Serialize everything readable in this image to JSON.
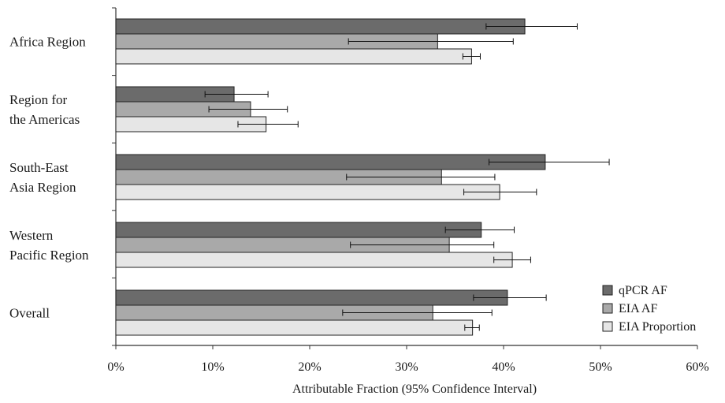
{
  "chart_data": {
    "type": "bar",
    "orientation": "horizontal",
    "categories": [
      [
        "Africa Region"
      ],
      [
        "Region for",
        "the Americas"
      ],
      [
        "South-East",
        "Asia Region"
      ],
      [
        "Western",
        "Pacific Region"
      ],
      [
        "Overall"
      ]
    ],
    "series": [
      {
        "name": "qPCR AF",
        "color": "#6b6b6b",
        "values": [
          42.2,
          12.2,
          44.3,
          37.7,
          40.4
        ],
        "ci_low": [
          38.2,
          9.2,
          38.5,
          34.0,
          36.9
        ],
        "ci_high": [
          47.6,
          15.7,
          50.9,
          41.1,
          44.4
        ]
      },
      {
        "name": "EIA AF",
        "color": "#a9a9a9",
        "values": [
          33.2,
          13.9,
          33.6,
          34.4,
          32.7
        ],
        "ci_low": [
          24.0,
          9.6,
          23.8,
          24.2,
          23.4
        ],
        "ci_high": [
          41.0,
          17.7,
          39.1,
          39.0,
          38.8
        ]
      },
      {
        "name": "EIA Proportion",
        "color": "#e6e6e6",
        "values": [
          36.7,
          15.5,
          39.6,
          40.9,
          36.8
        ],
        "ci_low": [
          35.8,
          12.6,
          35.9,
          39.0,
          36.0
        ],
        "ci_high": [
          37.6,
          18.8,
          43.4,
          42.8,
          37.5
        ]
      }
    ],
    "xticks": [
      "0%",
      "10%",
      "20%",
      "30%",
      "40%",
      "50%",
      "60%"
    ],
    "xlim": [
      0,
      60
    ],
    "xlabel": "Attributable Fraction (95% Confidence Interval)",
    "legend_position": "bottom-right",
    "grid": false
  }
}
